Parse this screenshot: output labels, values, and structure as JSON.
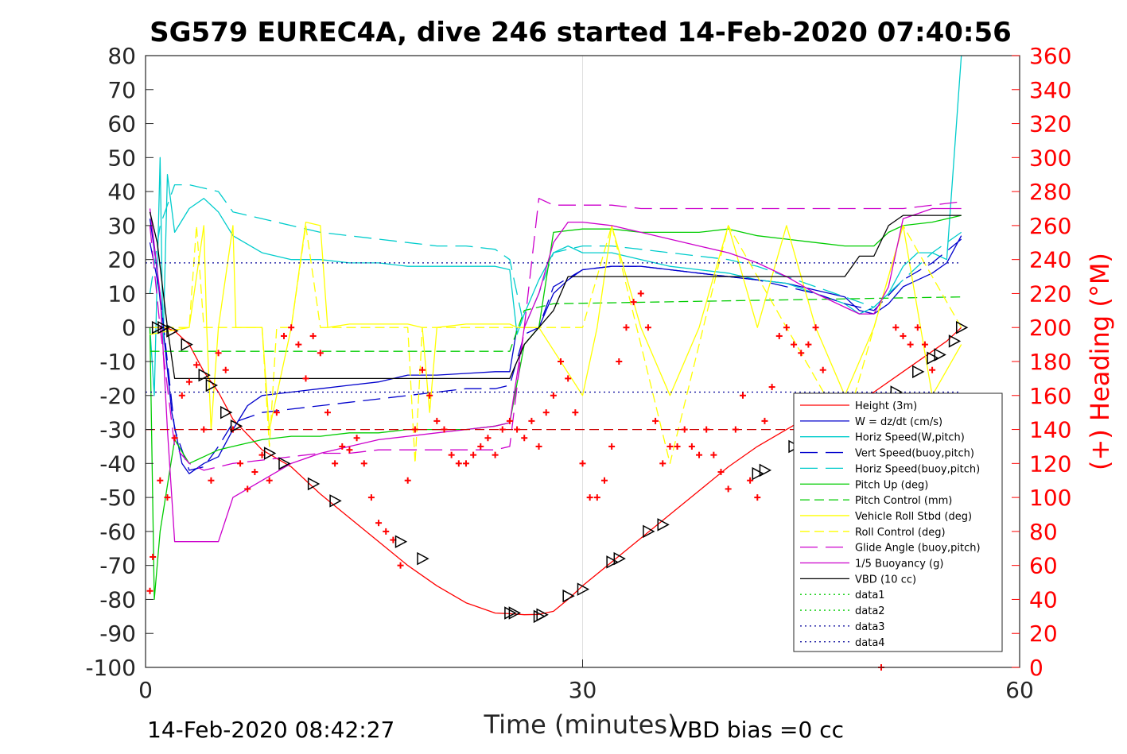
{
  "chart_data": {
    "type": "line",
    "title": "SG579 EUREC4A, dive 246 started 14-Feb-2020 07:40:56",
    "xlabel": "Time (minutes)",
    "ylabel_right": "(+) Heading (°M)",
    "footer_left": "14-Feb-2020 08:42:27",
    "footer_right": "VBD bias =0 cc",
    "xlim": [
      0,
      60
    ],
    "ylim": [
      -100,
      80
    ],
    "ylim_right": [
      0,
      360
    ],
    "xticks": [
      0,
      30,
      60
    ],
    "yticks": [
      80,
      70,
      60,
      50,
      40,
      30,
      20,
      10,
      0,
      -10,
      -20,
      -30,
      -40,
      -50,
      -60,
      -70,
      -80,
      -90,
      -100
    ],
    "yticks_right": [
      360,
      340,
      320,
      300,
      280,
      260,
      240,
      220,
      200,
      180,
      160,
      140,
      120,
      100,
      80,
      60,
      40,
      20,
      0
    ],
    "grid": "x-only",
    "legend_position": "lower-right",
    "series": [
      {
        "name": "Height (3m)",
        "color": "#ff0000",
        "dash": "solid",
        "x": [
          0.3,
          1.0,
          1.5,
          2.0,
          3.0,
          4.0,
          5.0,
          6.0,
          8.0,
          10.0,
          12.0,
          14.0,
          16.0,
          18.0,
          20.0,
          22.0,
          24.0,
          25.0,
          26.0,
          27.0,
          28.0,
          29.0,
          30.0,
          32.0,
          34.0,
          36.0,
          38.0,
          40.0,
          42.0,
          44.0,
          46.0,
          48.0,
          50.0,
          52.0,
          54.0,
          55.0,
          56.0
        ],
        "y": [
          0,
          0,
          -0.2,
          -1,
          -5,
          -13,
          -19,
          -27,
          -36,
          -41,
          -49,
          -56,
          -63,
          -70,
          -76,
          -81,
          -84,
          -84.2,
          -84.5,
          -84.4,
          -83.5,
          -80,
          -76,
          -69,
          -62,
          -55,
          -48,
          -41,
          -35,
          -30,
          -25,
          -23,
          -19,
          -13,
          -7,
          -4,
          0
        ]
      },
      {
        "name": "W = dz/dt (cm/s)",
        "color": "#0000cc",
        "dash": "solid",
        "x": [
          0.3,
          0.7,
          1.2,
          1.8,
          2.5,
          3.0,
          4.0,
          5.0,
          6.0,
          7.0,
          8.0,
          10.0,
          12.0,
          14.0,
          16.0,
          18.0,
          20.0,
          22.0,
          24.0,
          25.0,
          25.5,
          26.0,
          27.0,
          28.0,
          29.0,
          30.0,
          32.0,
          34.0,
          36.0,
          38.0,
          40.0,
          42.0,
          44.0,
          46.0,
          48.0,
          49.0,
          50.0,
          51.0,
          52.0,
          53.0,
          54.0,
          55.0,
          56.0
        ],
        "y": [
          32,
          20,
          0,
          -25,
          -40,
          -43,
          -40,
          -38,
          -30,
          -23,
          -20,
          -19,
          -18,
          -17,
          -16,
          -14,
          -14,
          -13.5,
          -13,
          -13,
          0,
          0,
          0,
          10,
          14,
          17,
          18,
          18,
          17,
          16,
          15,
          14,
          13,
          11,
          9,
          5,
          4,
          7,
          12,
          14,
          16,
          19,
          27
        ]
      },
      {
        "name": "Horiz Speed(W,pitch)",
        "color": "#00cccc",
        "dash": "solid",
        "x": [
          0.3,
          0.6,
          1.0,
          1.2,
          1.5,
          2.0,
          3.0,
          4.0,
          5.0,
          6.0,
          8.0,
          10.0,
          12.0,
          14.0,
          16.0,
          18.0,
          20.0,
          22.0,
          24.0,
          25.0,
          25.5,
          26.0,
          27.0,
          28.0,
          29.0,
          30.0,
          32.0,
          34.0,
          36.0,
          38.0,
          40.0,
          42.0,
          44.0,
          46.0,
          48.0,
          49.0,
          50.0,
          51.0,
          52.0,
          53.0,
          54.0,
          55.0,
          56.0
        ],
        "y": [
          0,
          -20,
          50,
          -5,
          45,
          28,
          35,
          38,
          34,
          27,
          22,
          20,
          20,
          19,
          19,
          18,
          18,
          18,
          18,
          17,
          -2,
          4,
          14,
          22,
          24,
          22,
          22,
          20,
          18,
          17,
          16,
          14,
          13,
          10,
          7,
          4,
          6,
          10,
          18,
          22,
          22,
          20,
          80
        ]
      },
      {
        "name": "Vert Speed(buoy,pitch)",
        "color": "#0000cc",
        "dash": "long-dash",
        "x": [
          0.3,
          1.0,
          2.0,
          3.0,
          4.0,
          5.0,
          6.0,
          8.0,
          10.0,
          12.0,
          14.0,
          16.0,
          18.0,
          20.0,
          22.0,
          24.0,
          25.0,
          26.0,
          27.0,
          28.0,
          30.0,
          32.0,
          34.0,
          36.0,
          38.0,
          40.0,
          42.0,
          44.0,
          46.0,
          48.0,
          50.0,
          52.0,
          54.0,
          56.0
        ],
        "y": [
          25,
          10,
          -30,
          -42,
          -41,
          -35,
          -28,
          -25,
          -24,
          -23,
          -22,
          -21,
          -20,
          -19,
          -18,
          -18,
          -17,
          -2,
          0,
          12,
          17,
          18,
          18,
          17,
          16,
          15,
          14,
          12,
          10,
          7,
          5,
          14,
          19,
          26
        ]
      },
      {
        "name": "Horiz Speed(buoy,pitch)",
        "color": "#00cccc",
        "dash": "long-dash",
        "x": [
          0.3,
          1.0,
          2.0,
          3.0,
          4.0,
          5.0,
          6.0,
          8.0,
          10.0,
          12.0,
          14.0,
          16.0,
          18.0,
          20.0,
          22.0,
          24.0,
          25.0,
          26.0,
          27.0,
          28.0,
          30.0,
          32.0,
          34.0,
          36.0,
          38.0,
          40.0,
          42.0,
          44.0,
          46.0,
          48.0,
          50.0,
          52.0,
          54.0,
          56.0
        ],
        "y": [
          10,
          30,
          42,
          42,
          41,
          40,
          34,
          32,
          30,
          28,
          27,
          26,
          25,
          24,
          24,
          23,
          20,
          0,
          10,
          22,
          24,
          24,
          23,
          22,
          21,
          20,
          18,
          15,
          12,
          9,
          6,
          14,
          22,
          28
        ]
      },
      {
        "name": "Pitch Up (deg)",
        "color": "#00cc00",
        "dash": "solid",
        "x": [
          0.3,
          0.6,
          1.0,
          2.0,
          3.0,
          4.0,
          5.0,
          6.0,
          8.0,
          10.0,
          12.0,
          14.0,
          16.0,
          18.0,
          20.0,
          22.0,
          24.0,
          25.0,
          26.0,
          27.0,
          28.0,
          30.0,
          32.0,
          34.0,
          36.0,
          38.0,
          40.0,
          42.0,
          44.0,
          46.0,
          48.0,
          50.0,
          51.0,
          52.0,
          54.0,
          56.0
        ],
        "y": [
          0,
          -80,
          -60,
          -33,
          -40,
          -38,
          -36,
          -35,
          -33,
          -32,
          -32,
          -31,
          -31,
          -30,
          -30,
          -30,
          -29,
          -28,
          -5,
          0,
          28,
          29,
          29,
          28,
          28,
          28,
          29,
          27,
          26,
          25,
          24,
          24,
          28,
          30,
          31,
          33
        ]
      },
      {
        "name": "Pitch Control (mm)",
        "color": "#00cc00",
        "dash": "dash",
        "x": [
          0.3,
          2.0,
          25.0,
          26.0,
          28.0,
          56.0
        ],
        "y": [
          -7,
          -7,
          -7,
          5,
          7,
          9
        ]
      },
      {
        "name": "Vehicle Roll Stbd (deg)",
        "color": "#ffff00",
        "dash": "solid",
        "x": [
          0.3,
          3.0,
          4.0,
          4.2,
          4.5,
          5.0,
          6.0,
          6.2,
          8.0,
          8.5,
          10.0,
          11.0,
          12.0,
          12.5,
          14.0,
          16.0,
          18.0,
          19.0,
          19.5,
          20.0,
          22.0,
          24.0,
          25.0,
          25.5,
          27.0,
          30.0,
          31.0,
          32.0,
          34.0,
          36.0,
          38.0,
          40.0,
          42.0,
          44.0,
          46.0,
          48.0,
          50.0,
          52.0,
          54.0,
          56.0
        ],
        "y": [
          -2,
          0,
          30,
          0,
          -30,
          0,
          30,
          0,
          0,
          -30,
          0,
          31,
          30,
          0,
          1,
          1,
          1,
          0,
          -25,
          0,
          1,
          1,
          1,
          0,
          0,
          -20,
          0,
          30,
          0,
          -20,
          0,
          30,
          0,
          30,
          0,
          -20,
          0,
          30,
          -20,
          -5
        ]
      },
      {
        "name": "Roll Control (deg)",
        "color": "#ffff00",
        "dash": "dash",
        "x": [
          0.3,
          3.0,
          3.5,
          4.0,
          8.0,
          8.5,
          9.0,
          10.0,
          11.0,
          12.0,
          18.0,
          18.5,
          19.0,
          25.0,
          30.0,
          32.0,
          36.0,
          40.0,
          44.0,
          48.0,
          52.0,
          56.0
        ],
        "y": [
          0,
          0,
          30,
          0,
          0,
          -35,
          0,
          0,
          30,
          0,
          0,
          -40,
          0,
          0,
          0,
          30,
          -40,
          30,
          0,
          -30,
          30,
          0
        ]
      },
      {
        "name": "Glide Angle (buoy,pitch)",
        "color": "#cc00cc",
        "dash": "long-dash",
        "x": [
          0.3,
          1.0,
          2.0,
          3.0,
          4.0,
          5.0,
          6.0,
          8.0,
          10.0,
          12.0,
          14.0,
          16.0,
          18.0,
          20.0,
          22.0,
          24.0,
          25.0,
          26.0,
          27.0,
          28.0,
          30.0,
          32.0,
          34.0,
          36.0,
          38.0,
          40.0,
          42.0,
          44.0,
          46.0,
          48.0,
          50.0,
          52.0,
          54.0,
          56.0
        ],
        "y": [
          30,
          0,
          -35,
          -40,
          -42,
          -41,
          -40,
          -39,
          -38,
          -37,
          -37,
          -36,
          -36,
          -36,
          -36,
          -36,
          -35,
          0,
          38,
          36,
          36,
          36,
          35,
          35,
          35,
          35,
          35,
          35,
          35,
          35,
          35,
          35,
          36,
          37
        ]
      },
      {
        "name": "1/5 Buoyancy (g)",
        "color": "#cc00cc",
        "dash": "solid",
        "x": [
          0.3,
          1.0,
          1.5,
          2.0,
          3.0,
          4.0,
          5.0,
          6.0,
          8.0,
          10.0,
          12.0,
          14.0,
          16.0,
          18.0,
          20.0,
          22.0,
          24.0,
          25.0,
          26.0,
          27.0,
          28.0,
          29.0,
          30.0,
          32.0,
          34.0,
          36.0,
          38.0,
          40.0,
          42.0,
          44.0,
          46.0,
          48.0,
          49.0,
          50.0,
          51.0,
          52.0,
          54.0,
          56.0
        ],
        "y": [
          35,
          10,
          -30,
          -63,
          -63,
          -63,
          -63,
          -50,
          -45,
          -40,
          -37,
          -35,
          -33,
          -32,
          -31,
          -30,
          -29,
          -28,
          0,
          10,
          25,
          31,
          31,
          30,
          28,
          26,
          24,
          22,
          19,
          15,
          10,
          6,
          4,
          4,
          12,
          32,
          35,
          35
        ]
      },
      {
        "name": "VBD (10 cc)",
        "color": "#000000",
        "dash": "solid",
        "x": [
          0.3,
          0.8,
          1.5,
          2.0,
          3.0,
          10.0,
          20.0,
          25.0,
          26.0,
          27.0,
          28.0,
          29.0,
          30.0,
          40.0,
          48.0,
          49.0,
          50.0,
          51.0,
          52.0,
          54.0,
          56.0
        ],
        "y": [
          34,
          25,
          0,
          -15,
          -15,
          -15,
          -15,
          -15,
          -5,
          0,
          5,
          15,
          15,
          15,
          15,
          21,
          21,
          30,
          33,
          33,
          33
        ]
      },
      {
        "name": "data1",
        "color": "#00cc00",
        "dash": "dotted",
        "x": [],
        "y": []
      },
      {
        "name": "data2",
        "color": "#00cc00",
        "dash": "dotted",
        "x": [],
        "y": []
      },
      {
        "name": "data3",
        "color": "#000099",
        "dash": "dotted",
        "x": [
          0,
          56
        ],
        "y": [
          19,
          19
        ]
      },
      {
        "name": "data4",
        "color": "#000099",
        "dash": "dotted",
        "x": [
          0,
          56
        ],
        "y": [
          -19,
          -19
        ]
      },
      {
        "name": "",
        "color": "#cc0000",
        "dash": "dash",
        "x": [
          0,
          56
        ],
        "y": [
          -30,
          -30
        ]
      }
    ],
    "heading": {
      "color": "#ff0000",
      "marker": "+",
      "axis": "right",
      "x": [
        0.3,
        0.5,
        1.0,
        1.5,
        2.0,
        2.5,
        3.0,
        3.5,
        4.0,
        4.5,
        5.0,
        5.5,
        6.0,
        6.5,
        7.0,
        7.5,
        8.0,
        8.5,
        9.0,
        9.5,
        10.0,
        10.5,
        11.0,
        11.5,
        12.0,
        12.5,
        13.0,
        13.5,
        14.0,
        14.5,
        15.0,
        15.5,
        16.0,
        16.5,
        17.0,
        17.5,
        18.0,
        18.5,
        19.0,
        19.5,
        20.0,
        20.5,
        21.0,
        21.5,
        22.0,
        22.5,
        23.0,
        23.5,
        24.0,
        24.5,
        25.0,
        25.5,
        26.0,
        26.5,
        27.0,
        27.5,
        28.0,
        28.5,
        29.0,
        29.5,
        30.0,
        30.5,
        31.0,
        31.5,
        32.0,
        32.5,
        33.0,
        33.5,
        34.0,
        34.5,
        35.0,
        35.5,
        36.0,
        36.5,
        37.0,
        37.5,
        38.0,
        38.5,
        39.0,
        39.5,
        40.0,
        40.5,
        41.0,
        41.5,
        42.0,
        42.5,
        43.0,
        43.5,
        44.0,
        44.5,
        45.0,
        45.5,
        46.0,
        46.5,
        47.0,
        47.5,
        48.0,
        48.5,
        49.0,
        49.5,
        50.0,
        50.5,
        51.0,
        51.5,
        52.0,
        52.5,
        53.0,
        53.5,
        54.0
      ],
      "y": [
        45,
        65,
        110,
        100,
        135,
        160,
        168,
        178,
        140,
        110,
        185,
        175,
        140,
        120,
        105,
        115,
        125,
        110,
        150,
        195,
        200,
        190,
        170,
        195,
        185,
        150,
        120,
        130,
        128,
        135,
        120,
        100,
        85,
        80,
        75,
        60,
        110,
        140,
        175,
        160,
        145,
        140,
        125,
        120,
        120,
        125,
        130,
        135,
        125,
        140,
        145,
        140,
        135,
        145,
        130,
        150,
        160,
        180,
        170,
        150,
        120,
        100,
        100,
        110,
        130,
        180,
        200,
        215,
        220,
        200,
        145,
        120,
        130,
        130,
        140,
        130,
        125,
        140,
        125,
        115,
        105,
        140,
        160,
        110,
        100,
        145,
        165,
        195,
        200,
        190,
        185,
        190,
        200,
        175,
        130,
        95,
        85,
        75,
        80,
        70,
        30,
        0,
        20,
        200,
        195,
        190,
        200,
        190,
        175
      ]
    },
    "markers": {
      "color": "#000000",
      "right_x": [
        0.8,
        1.2,
        1.8,
        2.8,
        4.0,
        4.5,
        5.5,
        6.2,
        8.5,
        9.5,
        11.5,
        13.0,
        17.5,
        19.0,
        25.0,
        25.3,
        27.0,
        27.2,
        29.0,
        30.0,
        32.0,
        32.5,
        34.5,
        35.5,
        42.0,
        42.5,
        44.5,
        45.0,
        51.5,
        53.0,
        54.0,
        54.5,
        55.5,
        56.0
      ],
      "right_y": [
        0,
        0,
        -1,
        -5,
        -14,
        -17,
        -25,
        -29,
        -37,
        -40,
        -46,
        -51,
        -63,
        -68,
        -84,
        -84,
        -85,
        -84.5,
        -79,
        -77,
        -69,
        -68,
        -60,
        -58,
        -43,
        -42,
        -35,
        -33,
        -19,
        -13,
        -9,
        -8,
        -4,
        0
      ]
    }
  }
}
